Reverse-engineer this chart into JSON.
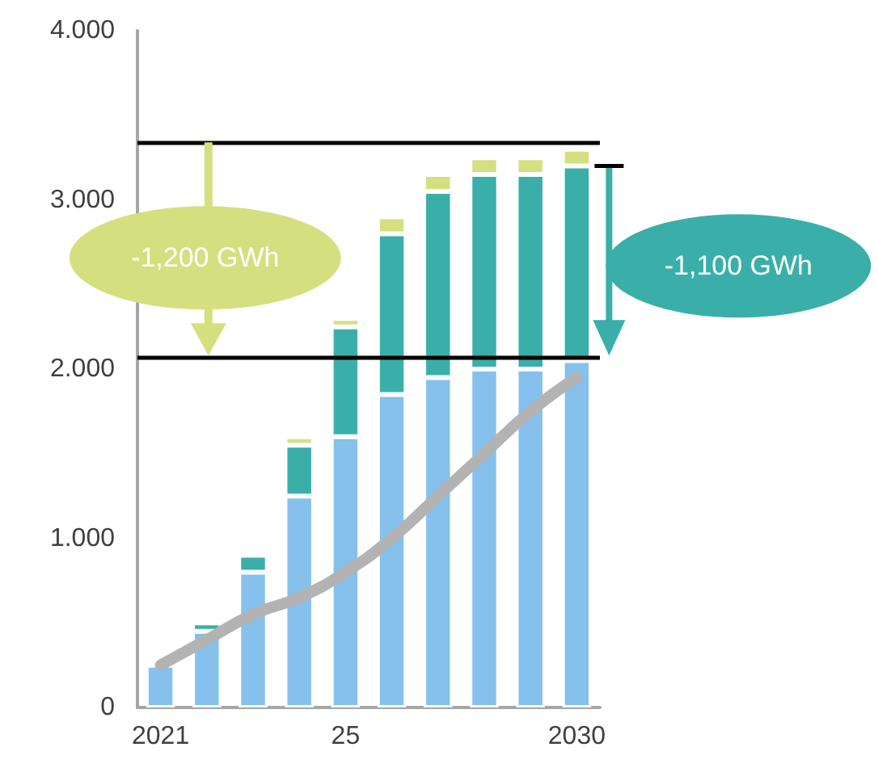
{
  "chart_data": {
    "type": "bar",
    "stacked": true,
    "categories": [
      "2021",
      null,
      null,
      null,
      "25",
      null,
      null,
      null,
      null,
      "2030"
    ],
    "series": [
      {
        "color": "#85c1ec",
        "values": [
          250,
          450,
          800,
          1250,
          1600,
          1850,
          1950,
          2000,
          2000,
          2050
        ]
      },
      {
        "color": "#3aafa9",
        "values": [
          null,
          50,
          100,
          300,
          650,
          950,
          1100,
          1150,
          1150,
          1150
        ]
      },
      {
        "color": "#d4e07f",
        "values": [
          null,
          null,
          null,
          50,
          50,
          100,
          100,
          100,
          100,
          100
        ]
      },
      {
        "type": "line",
        "color": "#b3b3b3",
        "values": [
          250,
          400,
          550,
          650,
          800,
          1000,
          1250,
          1500,
          1750,
          1950
        ]
      }
    ],
    "ylim": [
      0,
      4000
    ],
    "yticks": [
      {
        "value": 0,
        "label": "0"
      },
      {
        "value": 1000,
        "label": "1.000"
      },
      {
        "value": 2000,
        "label": "2.000"
      },
      {
        "value": 3000,
        "label": "3.000"
      },
      {
        "value": 4000,
        "label": "4.000"
      }
    ],
    "grid": false,
    "ref_lines": [
      {
        "axis": "y",
        "value": 3340,
        "color": "#000000"
      },
      {
        "axis": "y",
        "value": 2070,
        "color": "#000000"
      }
    ],
    "annotations": [
      "-1,200 GWh",
      "-1,100 GWh"
    ]
  }
}
